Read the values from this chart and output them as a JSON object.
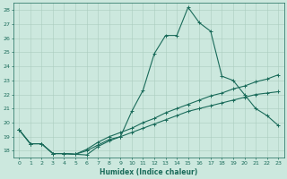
{
  "xlabel": "Humidex (Indice chaleur)",
  "ylabel": "",
  "bg_color": "#cce8de",
  "grid_color": "#aaccbe",
  "line_color": "#1a6b5a",
  "xlim": [
    -0.5,
    23.5
  ],
  "ylim": [
    17.5,
    28.5
  ],
  "yticks": [
    18,
    19,
    20,
    21,
    22,
    23,
    24,
    25,
    26,
    27,
    28
  ],
  "xticks": [
    0,
    1,
    2,
    3,
    4,
    5,
    6,
    7,
    8,
    9,
    10,
    11,
    12,
    13,
    14,
    15,
    16,
    17,
    18,
    19,
    20,
    21,
    22,
    23
  ],
  "line1": {
    "x": [
      0,
      1,
      2,
      3,
      4,
      5,
      6,
      7,
      8,
      9,
      10,
      11,
      12,
      13,
      14,
      15,
      16,
      17,
      18,
      19,
      20,
      21,
      22,
      23
    ],
    "y": [
      19.5,
      18.5,
      18.5,
      17.8,
      17.8,
      17.75,
      17.7,
      18.3,
      18.7,
      19.0,
      20.8,
      22.3,
      24.9,
      26.2,
      26.2,
      28.2,
      27.1,
      26.5,
      23.3,
      23.0,
      22.0,
      21.0,
      20.5,
      19.8
    ]
  },
  "line2": {
    "x": [
      0,
      1,
      2,
      3,
      4,
      5,
      6,
      7,
      8,
      9,
      10,
      11,
      12,
      13,
      14,
      15,
      16,
      17,
      18,
      19,
      20,
      21,
      22,
      23
    ],
    "y": [
      19.5,
      18.5,
      18.5,
      17.8,
      17.8,
      17.75,
      18.0,
      18.4,
      18.8,
      19.0,
      19.3,
      19.6,
      19.9,
      20.2,
      20.5,
      20.8,
      21.0,
      21.2,
      21.4,
      21.6,
      21.8,
      22.0,
      22.1,
      22.2
    ]
  },
  "line3": {
    "x": [
      0,
      1,
      2,
      3,
      4,
      5,
      6,
      7,
      8,
      9,
      10,
      11,
      12,
      13,
      14,
      15,
      16,
      17,
      18,
      19,
      20,
      21,
      22,
      23
    ],
    "y": [
      19.5,
      18.5,
      18.5,
      17.8,
      17.8,
      17.75,
      18.1,
      18.6,
      19.0,
      19.3,
      19.6,
      20.0,
      20.3,
      20.7,
      21.0,
      21.3,
      21.6,
      21.9,
      22.1,
      22.4,
      22.6,
      22.9,
      23.1,
      23.4
    ]
  }
}
